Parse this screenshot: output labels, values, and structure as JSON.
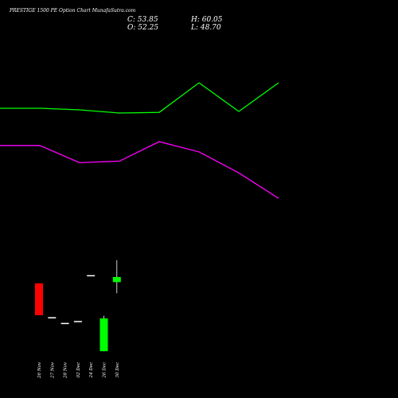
{
  "chart_data": {
    "type": "candlestick",
    "title": "PRESTIGE 1500 PE Option Chart MunafaSutra.com",
    "ohlc_readout": {
      "close_label": "C: 53.85",
      "open_label": "O: 52.25",
      "high_label": "H: 60.05",
      "low_label": "L: 48.70"
    },
    "categories": [
      "26 Nov",
      "27 Nov",
      "28 Nov",
      "02 Dec",
      "24 Dec",
      "26 Dec",
      "30 Dec"
    ],
    "candles": [
      {
        "date": "26 Nov",
        "open": 36.0,
        "high": 36.0,
        "low": 26.0,
        "close": 26.0,
        "color": "#ff0000"
      },
      {
        "date": "27 Nov",
        "open": 25.2,
        "high": 25.2,
        "low": 25.2,
        "close": 25.2,
        "color": "#ffffff"
      },
      {
        "date": "28 Nov",
        "open": 23.4,
        "high": 23.4,
        "low": 23.4,
        "close": 23.4,
        "color": "#ffffff"
      },
      {
        "date": "02 Dec",
        "open": 24.0,
        "high": 24.0,
        "low": 24.0,
        "close": 24.0,
        "color": "#ffffff"
      },
      {
        "date": "24 Dec",
        "open": 38.4,
        "high": 38.4,
        "low": 38.4,
        "close": 38.4,
        "color": "#ffffff"
      },
      {
        "date": "26 Dec",
        "open": 14.7,
        "high": 25.8,
        "low": 14.7,
        "close": 25.0,
        "color": "#00ff00"
      },
      {
        "date": "30 Dec",
        "open": 36.4,
        "high": 43.3,
        "low": 32.9,
        "close": 38.0,
        "color": "#00ff00"
      }
    ],
    "lines": [
      {
        "color": "#00ff00",
        "x": [
          0,
          0.25,
          1,
          2,
          3,
          4,
          5,
          6,
          7
        ],
        "values": [
          91.0,
          91.0,
          91.0,
          90.5,
          89.5,
          89.7,
          99.0,
          90.0,
          99.0
        ]
      },
      {
        "color": "#ff00ff",
        "x": [
          0,
          0.25,
          1,
          2,
          3,
          4,
          5,
          6,
          7
        ],
        "values": [
          79.3,
          79.3,
          79.3,
          73.9,
          74.4,
          80.5,
          77.3,
          70.7,
          62.7
        ]
      }
    ],
    "ylim": [
      0,
      125
    ],
    "grid": false,
    "legend": "none"
  }
}
